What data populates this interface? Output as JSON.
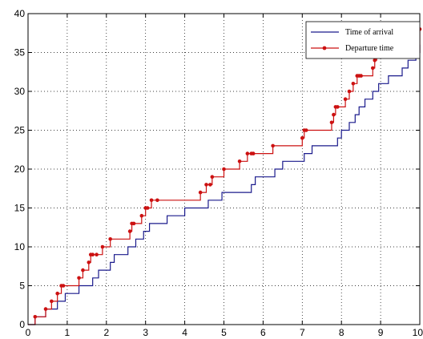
{
  "chart_data": {
    "type": "line",
    "title": "",
    "xlabel": "",
    "ylabel": "",
    "xlim": [
      0,
      10
    ],
    "ylim": [
      0,
      40
    ],
    "xticks": [
      "0",
      "1",
      "2",
      "3",
      "4",
      "5",
      "6",
      "7",
      "8",
      "9",
      "10"
    ],
    "yticks": [
      "0",
      "5",
      "10",
      "15",
      "20",
      "25",
      "30",
      "35",
      "40"
    ],
    "grid": "dotted",
    "legend_position": "top-right",
    "series": [
      {
        "name": "Time of arrival",
        "color": "#1a1a8c",
        "style": "step",
        "x": [
          0,
          0.18,
          0.45,
          0.75,
          0.95,
          1.3,
          1.65,
          1.8,
          2.1,
          2.2,
          2.55,
          2.75,
          2.95,
          3.1,
          3.55,
          4.0,
          4.6,
          4.95,
          5.7,
          5.8,
          6.3,
          6.5,
          7.05,
          7.25,
          7.9,
          8.0,
          8.2,
          8.35,
          8.45,
          8.6,
          8.8,
          8.95,
          9.2,
          9.55,
          9.7,
          9.9,
          10.0
        ],
        "values": [
          0,
          1,
          2,
          3,
          4,
          5,
          6,
          7,
          8,
          9,
          10,
          11,
          12,
          13,
          14,
          15,
          16,
          17,
          18,
          19,
          20,
          21,
          22,
          23,
          24,
          25,
          26,
          27,
          28,
          29,
          30,
          31,
          32,
          33,
          34,
          35,
          36
        ]
      },
      {
        "name": "Departure time",
        "color": "#cc1111",
        "style": "step-markers",
        "x": [
          0,
          0.18,
          0.45,
          0.6,
          0.75,
          0.85,
          0.9,
          1.3,
          1.4,
          1.55,
          1.6,
          1.65,
          1.75,
          1.9,
          2.1,
          2.6,
          2.65,
          2.7,
          2.9,
          3.0,
          3.05,
          3.15,
          3.3,
          4.4,
          4.55,
          4.65,
          4.7,
          5.0,
          5.4,
          5.6,
          5.7,
          5.75,
          6.25,
          7.0,
          7.05,
          7.1,
          7.75,
          7.8,
          7.85,
          7.9,
          8.1,
          8.2,
          8.3,
          8.4,
          8.45,
          8.5,
          8.8,
          8.85,
          8.9,
          10.0
        ],
        "values": [
          0,
          1,
          2,
          3,
          4,
          5,
          5,
          6,
          7,
          8,
          9,
          9,
          9,
          10,
          11,
          12,
          13,
          13,
          14,
          15,
          15,
          16,
          16,
          17,
          18,
          18,
          19,
          20,
          21,
          22,
          22,
          22,
          23,
          24,
          25,
          25,
          26,
          27,
          28,
          28,
          29,
          30,
          31,
          32,
          32,
          32,
          33,
          34,
          35,
          38
        ]
      }
    ]
  }
}
